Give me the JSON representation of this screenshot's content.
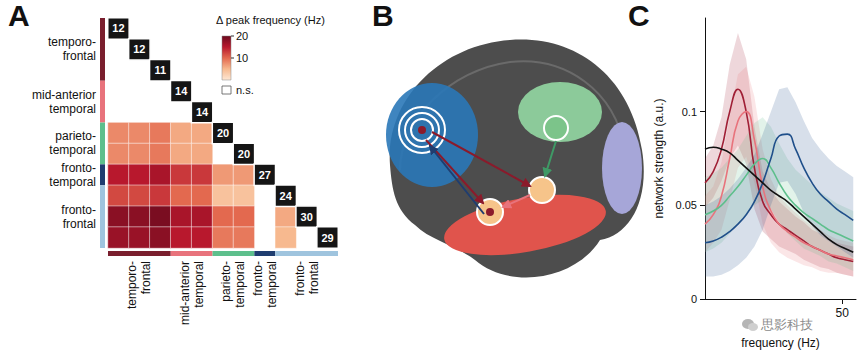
{
  "panel_labels": [
    "A",
    "B",
    "C"
  ],
  "watermark": "思影科技",
  "chart_data": [
    {
      "type": "heatmap",
      "tick_labels": false,
      "groups": [
        {
          "name": "temporo-frontal",
          "size": 3,
          "color": "#7a1f2e"
        },
        {
          "name": "mid-anterior temporal",
          "size": 2,
          "color": "#e8737c"
        },
        {
          "name": "parieto-temporal",
          "size": 2,
          "color": "#5dbf8c"
        },
        {
          "name": "fronto-temporal",
          "size": 1,
          "color": "#1f3d70"
        },
        {
          "name": "fronto-frontal",
          "size": 3,
          "color": "#9fc4de"
        }
      ],
      "peak_frequencies": [
        12,
        12,
        11,
        14,
        14,
        20,
        20,
        27,
        24,
        30,
        29
      ],
      "cells": [
        [],
        [
          null
        ],
        [
          null,
          null
        ],
        [
          null,
          null,
          null
        ],
        [
          null,
          null,
          null,
          null
        ],
        [
          8,
          8,
          9,
          6,
          6
        ],
        [
          8,
          8,
          9,
          6,
          6,
          null
        ],
        [
          15,
          15,
          16,
          13,
          13,
          7,
          7
        ],
        [
          12,
          12,
          13,
          10,
          10,
          4,
          4,
          null
        ],
        [
          18,
          18,
          19,
          16,
          16,
          10,
          10,
          null,
          6
        ],
        [
          17,
          17,
          18,
          15,
          15,
          9,
          9,
          null,
          5,
          null
        ]
      ],
      "colorbar_label": "Δ peak frequency (Hz)",
      "colorbar_range": [
        0,
        20
      ],
      "colorbar_ticks": [
        10,
        20
      ],
      "ns_label": "n.s."
    },
    {
      "type": "line",
      "xlabel": "frequency (Hz)",
      "ylabel": "network strength (a.u.)",
      "x": [
        0,
        3,
        6,
        9,
        12,
        15,
        18,
        21,
        24,
        27,
        30,
        33,
        36,
        39,
        42,
        45,
        48,
        51,
        54
      ],
      "xlim": [
        0,
        55
      ],
      "xticks": [
        50
      ],
      "ylim": [
        0,
        0.15
      ],
      "yticks": [
        0,
        0.05,
        0.1
      ],
      "series": [
        {
          "color": "#a01f35",
          "values": [
            0.062,
            0.068,
            0.08,
            0.1,
            0.112,
            0.1,
            0.07,
            0.052,
            0.045,
            0.04,
            0.037,
            0.034,
            0.031,
            0.028,
            0.026,
            0.024,
            0.022,
            0.021,
            0.02
          ],
          "upper": [
            0.075,
            0.082,
            0.097,
            0.125,
            0.142,
            0.128,
            0.092,
            0.068,
            0.058,
            0.052,
            0.048,
            0.044,
            0.041,
            0.037,
            0.035,
            0.032,
            0.03,
            0.029,
            0.028
          ],
          "lower": [
            0.049,
            0.054,
            0.063,
            0.075,
            0.082,
            0.072,
            0.048,
            0.036,
            0.032,
            0.028,
            0.026,
            0.024,
            0.021,
            0.019,
            0.017,
            0.016,
            0.014,
            0.013,
            0.012
          ]
        },
        {
          "color": "#e8737c",
          "values": [
            0.04,
            0.045,
            0.055,
            0.075,
            0.095,
            0.1,
            0.085,
            0.06,
            0.047,
            0.04,
            0.036,
            0.033,
            0.03,
            0.028,
            0.026,
            0.024,
            0.023,
            0.022,
            0.021
          ],
          "upper": [
            0.055,
            0.06,
            0.073,
            0.097,
            0.12,
            0.124,
            0.108,
            0.08,
            0.064,
            0.055,
            0.05,
            0.046,
            0.042,
            0.039,
            0.037,
            0.034,
            0.032,
            0.031,
            0.03
          ],
          "lower": [
            0.025,
            0.03,
            0.037,
            0.053,
            0.07,
            0.076,
            0.062,
            0.04,
            0.03,
            0.025,
            0.022,
            0.02,
            0.018,
            0.017,
            0.015,
            0.014,
            0.014,
            0.013,
            0.012
          ]
        },
        {
          "color": "#5dbf8c",
          "values": [
            0.045,
            0.047,
            0.05,
            0.055,
            0.06,
            0.066,
            0.072,
            0.075,
            0.07,
            0.062,
            0.055,
            0.05,
            0.046,
            0.043,
            0.04,
            0.037,
            0.035,
            0.033,
            0.031
          ],
          "upper": [
            0.065,
            0.067,
            0.07,
            0.075,
            0.08,
            0.087,
            0.094,
            0.097,
            0.092,
            0.083,
            0.075,
            0.069,
            0.065,
            0.061,
            0.057,
            0.054,
            0.051,
            0.049,
            0.047
          ],
          "lower": [
            0.025,
            0.027,
            0.03,
            0.035,
            0.04,
            0.045,
            0.05,
            0.053,
            0.048,
            0.041,
            0.035,
            0.031,
            0.027,
            0.025,
            0.023,
            0.02,
            0.019,
            0.017,
            0.015
          ]
        },
        {
          "color": "#1f4f8a",
          "values": [
            0.03,
            0.031,
            0.033,
            0.036,
            0.04,
            0.045,
            0.052,
            0.062,
            0.075,
            0.087,
            0.088,
            0.08,
            0.07,
            0.062,
            0.056,
            0.052,
            0.048,
            0.045,
            0.042
          ],
          "upper": [
            0.05,
            0.052,
            0.055,
            0.059,
            0.064,
            0.07,
            0.077,
            0.088,
            0.1,
            0.112,
            0.113,
            0.105,
            0.095,
            0.086,
            0.08,
            0.075,
            0.071,
            0.068,
            0.065
          ],
          "lower": [
            0.012,
            0.012,
            0.013,
            0.015,
            0.018,
            0.022,
            0.028,
            0.037,
            0.05,
            0.062,
            0.063,
            0.056,
            0.046,
            0.039,
            0.034,
            0.031,
            0.028,
            0.025,
            0.022
          ]
        },
        {
          "color": "#111111",
          "values": [
            0.08,
            0.081,
            0.08,
            0.078,
            0.074,
            0.07,
            0.066,
            0.062,
            0.058,
            0.055,
            0.052,
            0.048,
            0.044,
            0.04,
            0.036,
            0.032,
            0.029,
            0.027,
            0.025
          ]
        }
      ]
    }
  ]
}
